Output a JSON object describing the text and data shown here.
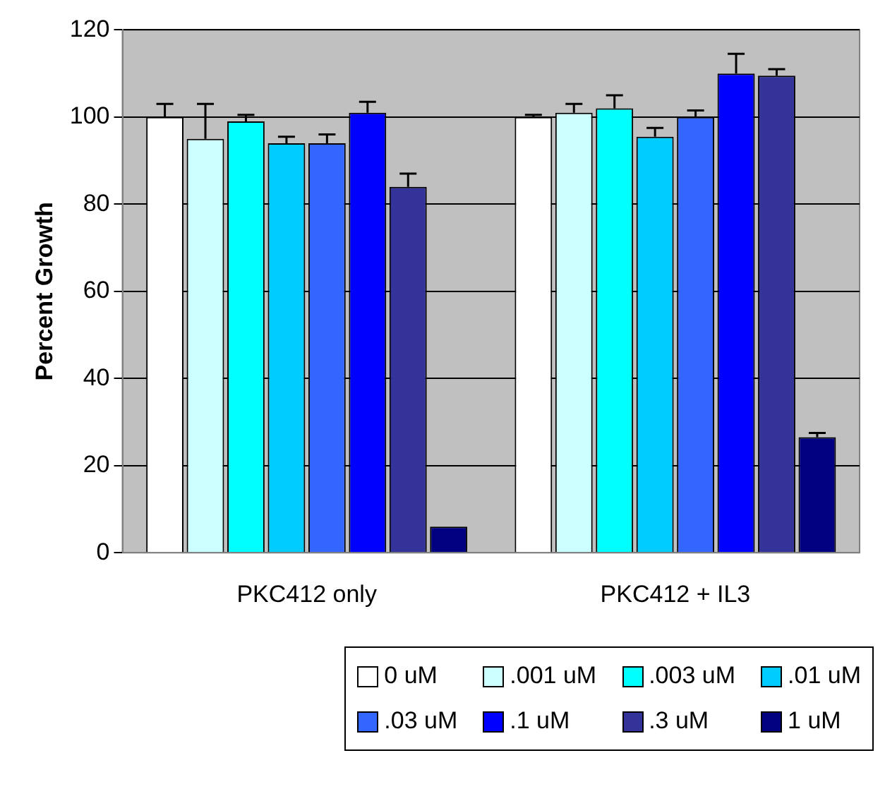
{
  "chart_data": {
    "type": "bar",
    "ylabel": "Percent Growth",
    "categories": [
      "PKC412 only",
      "PKC412 + IL3"
    ],
    "ylim": [
      0,
      120
    ],
    "yticks": [
      0,
      20,
      40,
      60,
      80,
      100,
      120
    ],
    "grid": "y",
    "legend": "bottom",
    "series": [
      {
        "name": "0 uM",
        "color": "#ffffff",
        "values": [
          100,
          100
        ],
        "errors": [
          [
            100,
            103
          ],
          [
            100,
            100.5
          ]
        ]
      },
      {
        "name": ".001 uM",
        "color": "#ccffff",
        "values": [
          95,
          101
        ],
        "errors": [
          [
            95,
            103
          ],
          [
            101,
            103
          ]
        ]
      },
      {
        "name": ".003 uM",
        "color": "#00ffff",
        "values": [
          99,
          102
        ],
        "errors": [
          [
            99,
            100.5
          ],
          [
            102,
            105
          ]
        ]
      },
      {
        "name": ".01 uM",
        "color": "#00ccff",
        "values": [
          94,
          95.5
        ],
        "errors": [
          [
            94,
            95.5
          ],
          [
            95.5,
            97.5
          ]
        ]
      },
      {
        "name": ".03 uM",
        "color": "#3366ff",
        "values": [
          94,
          100
        ],
        "errors": [
          [
            94,
            96
          ],
          [
            100,
            101.5
          ]
        ]
      },
      {
        "name": ".1 uM",
        "color": "#0000ff",
        "values": [
          101,
          110
        ],
        "errors": [
          [
            101,
            103.5
          ],
          [
            110,
            114.5
          ]
        ]
      },
      {
        "name": ".3 uM",
        "color": "#333399",
        "values": [
          84,
          109.5
        ],
        "errors": [
          [
            84,
            87
          ],
          [
            109.5,
            111
          ]
        ]
      },
      {
        "name": "1 uM",
        "color": "#000080",
        "values": [
          6,
          26.5
        ],
        "errors": [
          null,
          [
            26.5,
            27.5
          ]
        ]
      }
    ]
  }
}
